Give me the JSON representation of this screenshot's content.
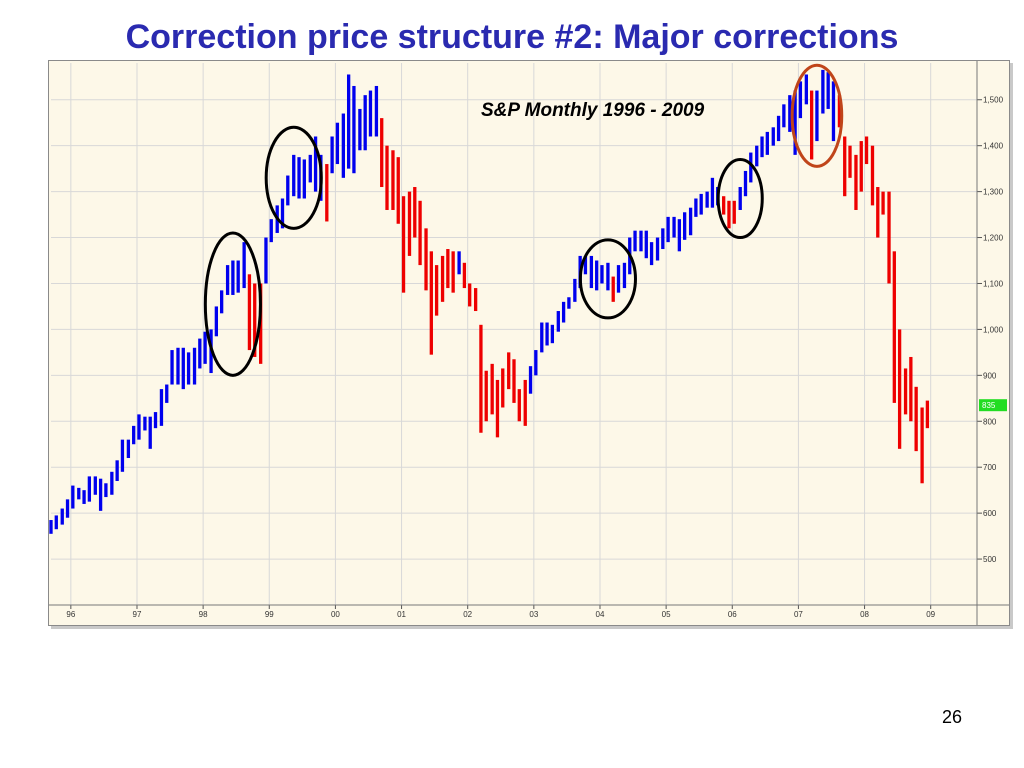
{
  "slide": {
    "title": "Correction price structure #2: Major corrections",
    "page_number": "26"
  },
  "chart_data": {
    "type": "bar",
    "subtype": "ohlc-range",
    "title": "S&P Monthly 1996 - 2009",
    "xlabel": "",
    "ylabel": "",
    "ylim": [
      400,
      1580
    ],
    "xlim": [
      1996.0,
      2010.0
    ],
    "grid": true,
    "x_ticks": [
      {
        "label": "96",
        "x": 1996.3
      },
      {
        "label": "97",
        "x": 1997.3
      },
      {
        "label": "98",
        "x": 1998.3
      },
      {
        "label": "99",
        "x": 1999.3
      },
      {
        "label": "00",
        "x": 2000.3
      },
      {
        "label": "01",
        "x": 2001.3
      },
      {
        "label": "02",
        "x": 2002.3
      },
      {
        "label": "03",
        "x": 2003.3
      },
      {
        "label": "04",
        "x": 2004.3
      },
      {
        "label": "05",
        "x": 2005.3
      },
      {
        "label": "06",
        "x": 2006.3
      },
      {
        "label": "07",
        "x": 2007.3
      },
      {
        "label": "08",
        "x": 2008.3
      },
      {
        "label": "09",
        "x": 2009.3
      }
    ],
    "y_ticks": [
      {
        "label": "1,500",
        "y": 1500
      },
      {
        "label": "1,400",
        "y": 1400
      },
      {
        "label": "1,300",
        "y": 1300
      },
      {
        "label": "1,200",
        "y": 1200
      },
      {
        "label": "1,100",
        "y": 1100
      },
      {
        "label": "1,000",
        "y": 1000
      },
      {
        "label": "900",
        "y": 900
      },
      {
        "label": "800",
        "y": 800
      },
      {
        "label": "700",
        "y": 700
      },
      {
        "label": "600",
        "y": 600
      },
      {
        "label": "500",
        "y": 500
      }
    ],
    "last_price_label": {
      "label": "835",
      "y": 835,
      "color": "#22dd22"
    },
    "colors": {
      "up": "#0000ee",
      "down": "#ee0000",
      "background": "#fdf8e8",
      "grid": "#d8d8d8"
    },
    "bars": [
      {
        "x": 1996.0,
        "low": 555,
        "high": 585,
        "color": "up"
      },
      {
        "x": 1996.08,
        "low": 565,
        "high": 595,
        "color": "up"
      },
      {
        "x": 1996.17,
        "low": 575,
        "high": 610,
        "color": "up"
      },
      {
        "x": 1996.25,
        "low": 590,
        "high": 630,
        "color": "up"
      },
      {
        "x": 1996.33,
        "low": 610,
        "high": 660,
        "color": "up"
      },
      {
        "x": 1996.42,
        "low": 630,
        "high": 655,
        "color": "up"
      },
      {
        "x": 1996.5,
        "low": 620,
        "high": 650,
        "color": "up"
      },
      {
        "x": 1996.58,
        "low": 625,
        "high": 680,
        "color": "up"
      },
      {
        "x": 1996.67,
        "low": 640,
        "high": 680,
        "color": "up"
      },
      {
        "x": 1996.75,
        "low": 605,
        "high": 675,
        "color": "up"
      },
      {
        "x": 1996.83,
        "low": 635,
        "high": 665,
        "color": "up"
      },
      {
        "x": 1996.92,
        "low": 640,
        "high": 690,
        "color": "up"
      },
      {
        "x": 1997.0,
        "low": 670,
        "high": 715,
        "color": "up"
      },
      {
        "x": 1997.08,
        "low": 690,
        "high": 760,
        "color": "up"
      },
      {
        "x": 1997.17,
        "low": 720,
        "high": 760,
        "color": "up"
      },
      {
        "x": 1997.25,
        "low": 750,
        "high": 790,
        "color": "up"
      },
      {
        "x": 1997.33,
        "low": 760,
        "high": 815,
        "color": "up"
      },
      {
        "x": 1997.42,
        "low": 780,
        "high": 810,
        "color": "up"
      },
      {
        "x": 1997.5,
        "low": 740,
        "high": 810,
        "color": "up"
      },
      {
        "x": 1997.58,
        "low": 785,
        "high": 820,
        "color": "up"
      },
      {
        "x": 1997.67,
        "low": 790,
        "high": 870,
        "color": "up"
      },
      {
        "x": 1997.75,
        "low": 840,
        "high": 880,
        "color": "up"
      },
      {
        "x": 1997.83,
        "low": 880,
        "high": 955,
        "color": "up"
      },
      {
        "x": 1997.92,
        "low": 880,
        "high": 960,
        "color": "up"
      },
      {
        "x": 1998.0,
        "low": 870,
        "high": 960,
        "color": "up"
      },
      {
        "x": 1998.08,
        "low": 880,
        "high": 950,
        "color": "up"
      },
      {
        "x": 1998.17,
        "low": 880,
        "high": 960,
        "color": "up"
      },
      {
        "x": 1998.25,
        "low": 915,
        "high": 980,
        "color": "up"
      },
      {
        "x": 1998.33,
        "low": 925,
        "high": 995,
        "color": "up"
      },
      {
        "x": 1998.42,
        "low": 905,
        "high": 1000,
        "color": "up"
      },
      {
        "x": 1998.5,
        "low": 985,
        "high": 1050,
        "color": "up"
      },
      {
        "x": 1998.58,
        "low": 1035,
        "high": 1085,
        "color": "up"
      },
      {
        "x": 1998.67,
        "low": 1075,
        "high": 1140,
        "color": "up"
      },
      {
        "x": 1998.75,
        "low": 1075,
        "high": 1150,
        "color": "up"
      },
      {
        "x": 1998.83,
        "low": 1080,
        "high": 1150,
        "color": "up"
      },
      {
        "x": 1998.92,
        "low": 1090,
        "high": 1190,
        "color": "up"
      },
      {
        "x": 1999.0,
        "low": 955,
        "high": 1120,
        "color": "down"
      },
      {
        "x": 1999.08,
        "low": 940,
        "high": 1100,
        "color": "down"
      },
      {
        "x": 1999.17,
        "low": 925,
        "high": 1100,
        "color": "down"
      },
      {
        "x": 1999.25,
        "low": 1100,
        "high": 1200,
        "color": "up"
      },
      {
        "x": 1999.33,
        "low": 1190,
        "high": 1240,
        "color": "up"
      },
      {
        "x": 1999.42,
        "low": 1210,
        "high": 1270,
        "color": "up"
      },
      {
        "x": 1999.5,
        "low": 1220,
        "high": 1285,
        "color": "up"
      },
      {
        "x": 1999.58,
        "low": 1270,
        "high": 1335,
        "color": "up"
      },
      {
        "x": 1999.67,
        "low": 1290,
        "high": 1380,
        "color": "up"
      },
      {
        "x": 1999.75,
        "low": 1285,
        "high": 1375,
        "color": "up"
      },
      {
        "x": 1999.83,
        "low": 1285,
        "high": 1370,
        "color": "up"
      },
      {
        "x": 1999.92,
        "low": 1320,
        "high": 1380,
        "color": "up"
      },
      {
        "x": 2000.0,
        "low": 1300,
        "high": 1420,
        "color": "up"
      },
      {
        "x": 2000.08,
        "low": 1280,
        "high": 1380,
        "color": "up"
      },
      {
        "x": 2000.17,
        "low": 1235,
        "high": 1360,
        "color": "down"
      },
      {
        "x": 2000.25,
        "low": 1340,
        "high": 1420,
        "color": "up"
      },
      {
        "x": 2000.33,
        "low": 1360,
        "high": 1450,
        "color": "up"
      },
      {
        "x": 2000.42,
        "low": 1330,
        "high": 1470,
        "color": "up"
      },
      {
        "x": 2000.5,
        "low": 1350,
        "high": 1555,
        "color": "up"
      },
      {
        "x": 2000.58,
        "low": 1340,
        "high": 1530,
        "color": "up"
      },
      {
        "x": 2000.67,
        "low": 1390,
        "high": 1480,
        "color": "up"
      },
      {
        "x": 2000.75,
        "low": 1390,
        "high": 1510,
        "color": "up"
      },
      {
        "x": 2000.83,
        "low": 1420,
        "high": 1520,
        "color": "up"
      },
      {
        "x": 2000.92,
        "low": 1420,
        "high": 1530,
        "color": "up"
      },
      {
        "x": 2001.0,
        "low": 1310,
        "high": 1460,
        "color": "down"
      },
      {
        "x": 2001.08,
        "low": 1260,
        "high": 1400,
        "color": "down"
      },
      {
        "x": 2001.17,
        "low": 1260,
        "high": 1390,
        "color": "down"
      },
      {
        "x": 2001.25,
        "low": 1230,
        "high": 1375,
        "color": "down"
      },
      {
        "x": 2001.33,
        "low": 1080,
        "high": 1290,
        "color": "down"
      },
      {
        "x": 2001.42,
        "low": 1160,
        "high": 1300,
        "color": "down"
      },
      {
        "x": 2001.5,
        "low": 1200,
        "high": 1310,
        "color": "down"
      },
      {
        "x": 2001.58,
        "low": 1140,
        "high": 1280,
        "color": "down"
      },
      {
        "x": 2001.67,
        "low": 1085,
        "high": 1220,
        "color": "down"
      },
      {
        "x": 2001.75,
        "low": 945,
        "high": 1170,
        "color": "down"
      },
      {
        "x": 2001.83,
        "low": 1030,
        "high": 1140,
        "color": "down"
      },
      {
        "x": 2001.92,
        "low": 1060,
        "high": 1160,
        "color": "down"
      },
      {
        "x": 2002.0,
        "low": 1090,
        "high": 1175,
        "color": "down"
      },
      {
        "x": 2002.08,
        "low": 1080,
        "high": 1170,
        "color": "down"
      },
      {
        "x": 2002.17,
        "low": 1120,
        "high": 1170,
        "color": "up"
      },
      {
        "x": 2002.25,
        "low": 1090,
        "high": 1145,
        "color": "down"
      },
      {
        "x": 2002.33,
        "low": 1050,
        "high": 1100,
        "color": "down"
      },
      {
        "x": 2002.42,
        "low": 1040,
        "high": 1090,
        "color": "down"
      },
      {
        "x": 2002.5,
        "low": 775,
        "high": 1010,
        "color": "down"
      },
      {
        "x": 2002.58,
        "low": 800,
        "high": 910,
        "color": "down"
      },
      {
        "x": 2002.67,
        "low": 815,
        "high": 925,
        "color": "down"
      },
      {
        "x": 2002.75,
        "low": 765,
        "high": 890,
        "color": "down"
      },
      {
        "x": 2002.83,
        "low": 830,
        "high": 915,
        "color": "down"
      },
      {
        "x": 2002.92,
        "low": 870,
        "high": 950,
        "color": "down"
      },
      {
        "x": 2003.0,
        "low": 840,
        "high": 935,
        "color": "down"
      },
      {
        "x": 2003.08,
        "low": 800,
        "high": 870,
        "color": "down"
      },
      {
        "x": 2003.17,
        "low": 790,
        "high": 890,
        "color": "down"
      },
      {
        "x": 2003.25,
        "low": 860,
        "high": 920,
        "color": "up"
      },
      {
        "x": 2003.33,
        "low": 900,
        "high": 955,
        "color": "up"
      },
      {
        "x": 2003.42,
        "low": 950,
        "high": 1015,
        "color": "up"
      },
      {
        "x": 2003.5,
        "low": 965,
        "high": 1015,
        "color": "up"
      },
      {
        "x": 2003.58,
        "low": 970,
        "high": 1010,
        "color": "up"
      },
      {
        "x": 2003.67,
        "low": 995,
        "high": 1040,
        "color": "up"
      },
      {
        "x": 2003.75,
        "low": 1015,
        "high": 1060,
        "color": "up"
      },
      {
        "x": 2003.83,
        "low": 1045,
        "high": 1070,
        "color": "up"
      },
      {
        "x": 2003.92,
        "low": 1060,
        "high": 1110,
        "color": "up"
      },
      {
        "x": 2004.0,
        "low": 1090,
        "high": 1160,
        "color": "up"
      },
      {
        "x": 2004.08,
        "low": 1120,
        "high": 1160,
        "color": "up"
      },
      {
        "x": 2004.17,
        "low": 1090,
        "high": 1160,
        "color": "up"
      },
      {
        "x": 2004.25,
        "low": 1085,
        "high": 1150,
        "color": "up"
      },
      {
        "x": 2004.33,
        "low": 1100,
        "high": 1140,
        "color": "up"
      },
      {
        "x": 2004.42,
        "low": 1085,
        "high": 1145,
        "color": "up"
      },
      {
        "x": 2004.5,
        "low": 1060,
        "high": 1115,
        "color": "down"
      },
      {
        "x": 2004.58,
        "low": 1080,
        "high": 1140,
        "color": "up"
      },
      {
        "x": 2004.67,
        "low": 1090,
        "high": 1145,
        "color": "up"
      },
      {
        "x": 2004.75,
        "low": 1120,
        "high": 1200,
        "color": "up"
      },
      {
        "x": 2004.83,
        "low": 1170,
        "high": 1215,
        "color": "up"
      },
      {
        "x": 2004.92,
        "low": 1170,
        "high": 1215,
        "color": "up"
      },
      {
        "x": 2005.0,
        "low": 1155,
        "high": 1215,
        "color": "up"
      },
      {
        "x": 2005.08,
        "low": 1140,
        "high": 1190,
        "color": "up"
      },
      {
        "x": 2005.17,
        "low": 1150,
        "high": 1200,
        "color": "up"
      },
      {
        "x": 2005.25,
        "low": 1175,
        "high": 1220,
        "color": "up"
      },
      {
        "x": 2005.33,
        "low": 1190,
        "high": 1245,
        "color": "up"
      },
      {
        "x": 2005.42,
        "low": 1200,
        "high": 1245,
        "color": "up"
      },
      {
        "x": 2005.5,
        "low": 1170,
        "high": 1240,
        "color": "up"
      },
      {
        "x": 2005.58,
        "low": 1195,
        "high": 1255,
        "color": "up"
      },
      {
        "x": 2005.67,
        "low": 1205,
        "high": 1265,
        "color": "up"
      },
      {
        "x": 2005.75,
        "low": 1245,
        "high": 1285,
        "color": "up"
      },
      {
        "x": 2005.83,
        "low": 1250,
        "high": 1295,
        "color": "up"
      },
      {
        "x": 2005.92,
        "low": 1265,
        "high": 1300,
        "color": "up"
      },
      {
        "x": 2006.0,
        "low": 1265,
        "high": 1330,
        "color": "up"
      },
      {
        "x": 2006.08,
        "low": 1270,
        "high": 1310,
        "color": "up"
      },
      {
        "x": 2006.17,
        "low": 1250,
        "high": 1290,
        "color": "down"
      },
      {
        "x": 2006.25,
        "low": 1220,
        "high": 1280,
        "color": "down"
      },
      {
        "x": 2006.33,
        "low": 1230,
        "high": 1280,
        "color": "down"
      },
      {
        "x": 2006.42,
        "low": 1260,
        "high": 1310,
        "color": "up"
      },
      {
        "x": 2006.5,
        "low": 1290,
        "high": 1345,
        "color": "up"
      },
      {
        "x": 2006.58,
        "low": 1320,
        "high": 1385,
        "color": "up"
      },
      {
        "x": 2006.67,
        "low": 1355,
        "high": 1400,
        "color": "up"
      },
      {
        "x": 2006.75,
        "low": 1375,
        "high": 1420,
        "color": "up"
      },
      {
        "x": 2006.83,
        "low": 1380,
        "high": 1430,
        "color": "up"
      },
      {
        "x": 2006.92,
        "low": 1400,
        "high": 1440,
        "color": "up"
      },
      {
        "x": 2007.0,
        "low": 1410,
        "high": 1465,
        "color": "up"
      },
      {
        "x": 2007.08,
        "low": 1440,
        "high": 1490,
        "color": "up"
      },
      {
        "x": 2007.17,
        "low": 1430,
        "high": 1510,
        "color": "up"
      },
      {
        "x": 2007.25,
        "low": 1380,
        "high": 1520,
        "color": "up"
      },
      {
        "x": 2007.33,
        "low": 1460,
        "high": 1540,
        "color": "up"
      },
      {
        "x": 2007.42,
        "low": 1490,
        "high": 1555,
        "color": "up"
      },
      {
        "x": 2007.5,
        "low": 1370,
        "high": 1520,
        "color": "down"
      },
      {
        "x": 2007.58,
        "low": 1410,
        "high": 1520,
        "color": "up"
      },
      {
        "x": 2007.67,
        "low": 1470,
        "high": 1565,
        "color": "up"
      },
      {
        "x": 2007.75,
        "low": 1480,
        "high": 1560,
        "color": "up"
      },
      {
        "x": 2007.83,
        "low": 1410,
        "high": 1540,
        "color": "up"
      },
      {
        "x": 2007.92,
        "low": 1440,
        "high": 1510,
        "color": "down"
      },
      {
        "x": 2008.0,
        "low": 1290,
        "high": 1420,
        "color": "down"
      },
      {
        "x": 2008.08,
        "low": 1330,
        "high": 1400,
        "color": "down"
      },
      {
        "x": 2008.17,
        "low": 1260,
        "high": 1380,
        "color": "down"
      },
      {
        "x": 2008.25,
        "low": 1300,
        "high": 1410,
        "color": "down"
      },
      {
        "x": 2008.33,
        "low": 1360,
        "high": 1420,
        "color": "down"
      },
      {
        "x": 2008.42,
        "low": 1270,
        "high": 1400,
        "color": "down"
      },
      {
        "x": 2008.5,
        "low": 1200,
        "high": 1310,
        "color": "down"
      },
      {
        "x": 2008.58,
        "low": 1250,
        "high": 1300,
        "color": "down"
      },
      {
        "x": 2008.67,
        "low": 1100,
        "high": 1300,
        "color": "down"
      },
      {
        "x": 2008.75,
        "low": 840,
        "high": 1170,
        "color": "down"
      },
      {
        "x": 2008.83,
        "low": 740,
        "high": 1000,
        "color": "down"
      },
      {
        "x": 2008.92,
        "low": 815,
        "high": 915,
        "color": "down"
      },
      {
        "x": 2009.0,
        "low": 800,
        "high": 940,
        "color": "down"
      },
      {
        "x": 2009.08,
        "low": 735,
        "high": 875,
        "color": "down"
      },
      {
        "x": 2009.17,
        "low": 665,
        "high": 830,
        "color": "down"
      },
      {
        "x": 2009.25,
        "low": 785,
        "high": 845,
        "color": "down"
      }
    ],
    "circles": [
      {
        "cx": 1998.75,
        "cy": 1055,
        "rx_months": 5.0,
        "ry_units": 155,
        "color": "#000000"
      },
      {
        "cx": 1999.67,
        "cy": 1330,
        "rx_months": 5.0,
        "ry_units": 110,
        "color": "#000000"
      },
      {
        "cx": 2004.42,
        "cy": 1110,
        "rx_months": 5.0,
        "ry_units": 85,
        "color": "#000000"
      },
      {
        "cx": 2006.42,
        "cy": 1285,
        "rx_months": 4.0,
        "ry_units": 85,
        "color": "#000000"
      },
      {
        "cx": 2007.58,
        "cy": 1465,
        "rx_months": 4.5,
        "ry_units": 110,
        "color": "#c0451a"
      }
    ]
  }
}
